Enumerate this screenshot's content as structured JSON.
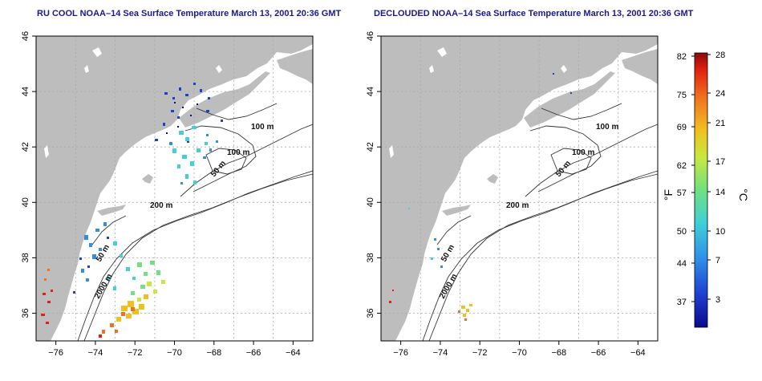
{
  "panels": [
    {
      "title": "RU COOL NOAA–14 Sea Surface Temperature March 13, 2001 20:36 GMT",
      "contour_labels": [
        "100 m",
        "100 m",
        "50 m",
        "200 m",
        "50 m",
        "2000 m"
      ]
    },
    {
      "title": "DECLOUDED NOAA–14 Sea Surface Temperature March 13, 2001 20:36 GMT",
      "contour_labels": [
        "100 m",
        "100 m",
        "50 m",
        "200 m",
        "50 m",
        "2000 m"
      ]
    }
  ],
  "axes": {
    "x_ticks": [
      "−76",
      "−74",
      "−72",
      "−70",
      "−68",
      "−66",
      "−64"
    ],
    "y_ticks": [
      "36",
      "38",
      "40",
      "42",
      "44",
      "46"
    ],
    "xlim": [
      -77,
      -63
    ],
    "ylim": [
      35,
      46
    ]
  },
  "colorbar": {
    "f_ticks": [
      "82",
      "75",
      "69",
      "62",
      "57",
      "50",
      "44",
      "37"
    ],
    "c_ticks": [
      "28",
      "24",
      "21",
      "17",
      "14",
      "10",
      "7",
      "3"
    ],
    "f_unit": "°F",
    "c_unit": "°C"
  },
  "colors": {
    "land": "#bdbdbd",
    "title": "#1a1a8c",
    "scale": [
      "#0a0a8c",
      "#1f3fd0",
      "#2f8fe8",
      "#40d0d8",
      "#70e080",
      "#c8e840",
      "#f0c020",
      "#f07020",
      "#e02010",
      "#8c0a0a"
    ]
  }
}
